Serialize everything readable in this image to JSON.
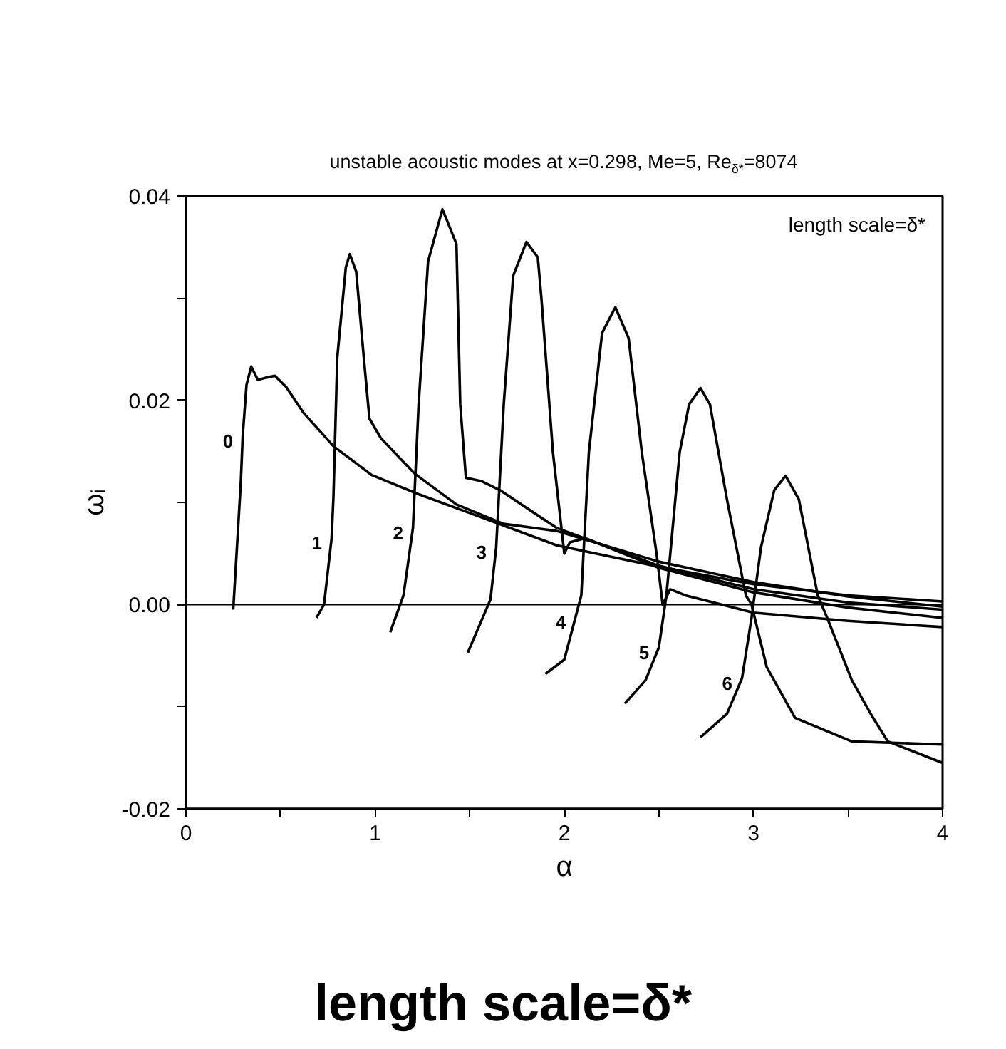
{
  "chart_data": {
    "type": "line",
    "title": "unstable acoustic modes at x=0.298, Me=5, Re$_{δ*}$=8074",
    "xlabel": "α",
    "ylabel": "ωᵢ",
    "xlim": [
      0,
      4
    ],
    "ylim": [
      -0.02,
      0.04
    ],
    "xticks": [
      0,
      {
        "value": 0.5,
        "label": null
      },
      1,
      {
        "value": 1.5,
        "label": null
      },
      2,
      {
        "value": 2.5,
        "label": null
      },
      3,
      {
        "value": 3.5,
        "label": null
      },
      4
    ],
    "yticks": [
      {
        "value": -0.02,
        "label": "-0.02"
      },
      {
        "value": -0.01,
        "label": null
      },
      {
        "value": 0,
        "label": "0.00"
      },
      {
        "value": 0.01,
        "label": null
      },
      {
        "value": 0.02,
        "label": "0.02"
      },
      {
        "value": 0.03,
        "label": null
      },
      {
        "value": 0.04,
        "label": "0.04"
      }
    ],
    "grid": false,
    "marker": "none",
    "line_style": "solid",
    "ref_lines": [
      {
        "axis": "y",
        "value": 0,
        "color": "#000000"
      }
    ],
    "annotations": [
      "length scale=δ*",
      "length scale=δ*"
    ],
    "series": [
      {
        "name": "0",
        "color": "#000000",
        "x": [
          0.25,
          0.29,
          0.3,
          0.32,
          0.345,
          0.38,
          0.42,
          0.47,
          0.53,
          0.62,
          0.78,
          0.98,
          1.23,
          1.48,
          1.96,
          2.5,
          3.0,
          3.5,
          4.0
        ],
        "values": [
          -0.0005,
          0.012,
          0.0165,
          0.0215,
          0.0233,
          0.022,
          0.0222,
          0.0224,
          0.0213,
          0.0188,
          0.0155,
          0.0127,
          0.0108,
          0.0091,
          0.0058,
          0.0037,
          0.002,
          0.0009,
          0.0003
        ]
      },
      {
        "name": "1",
        "color": "#000000",
        "x": [
          0.69,
          0.73,
          0.77,
          0.78,
          0.8,
          0.845,
          0.866,
          0.9,
          0.94,
          0.97,
          1.03,
          1.21,
          1.43,
          1.68,
          1.96,
          2.5,
          3.0,
          3.5,
          4.0
        ],
        "values": [
          -0.0013,
          0.0,
          0.0065,
          0.0107,
          0.0242,
          0.033,
          0.0343,
          0.0326,
          0.0242,
          0.0182,
          0.0163,
          0.0128,
          0.0098,
          0.0079,
          0.0072,
          0.0042,
          0.0022,
          0.0008,
          -0.0002
        ]
      },
      {
        "name": "2",
        "color": "#000000",
        "x": [
          1.08,
          1.15,
          1.2,
          1.23,
          1.28,
          1.356,
          1.43,
          1.45,
          1.48,
          1.56,
          1.66,
          1.96,
          2.5,
          3.0,
          3.5,
          4.0
        ],
        "values": [
          -0.0027,
          0.0009,
          0.0075,
          0.0196,
          0.0336,
          0.0387,
          0.0353,
          0.0196,
          0.0124,
          0.0121,
          0.0112,
          0.0075,
          0.0038,
          0.0015,
          0.0002,
          -0.0005
        ]
      },
      {
        "name": "3",
        "color": "#000000",
        "x": [
          1.49,
          1.61,
          1.64,
          1.68,
          1.73,
          1.8,
          1.86,
          1.88,
          1.94,
          2.0,
          2.03,
          2.11,
          2.5,
          3.0,
          3.5,
          4.0
        ],
        "values": [
          -0.0047,
          0.0005,
          0.0056,
          0.0196,
          0.0322,
          0.0355,
          0.034,
          0.0298,
          0.0149,
          0.005,
          0.0061,
          0.0065,
          0.0036,
          0.0012,
          -0.0003,
          -0.0013
        ]
      },
      {
        "name": "4",
        "color": "#000000",
        "x": [
          1.9,
          2.0,
          2.06,
          2.09,
          2.13,
          2.2,
          2.27,
          2.34,
          2.41,
          2.49,
          2.52,
          2.56,
          2.64,
          3.0,
          3.5,
          4.0
        ],
        "values": [
          -0.0068,
          -0.0054,
          -0.0012,
          0.0009,
          0.0149,
          0.0266,
          0.0291,
          0.0261,
          0.0149,
          0.0047,
          0.0,
          0.0015,
          0.0009,
          -0.0008,
          -0.0016,
          -0.0022
        ]
      },
      {
        "name": "5",
        "color": "#000000",
        "x": [
          2.32,
          2.43,
          2.5,
          2.54,
          2.61,
          2.66,
          2.72,
          2.77,
          2.86,
          2.96,
          2.99,
          3.07,
          3.22,
          3.52,
          4.0
        ],
        "values": [
          -0.0097,
          -0.0074,
          -0.0042,
          0.0009,
          0.0149,
          0.0196,
          0.0212,
          0.0196,
          0.0103,
          0.0009,
          0.0,
          -0.0061,
          -0.0111,
          -0.0134,
          -0.0137
        ]
      },
      {
        "name": "6",
        "color": "#000000",
        "x": [
          2.72,
          2.86,
          2.94,
          2.99,
          3.04,
          3.11,
          3.17,
          3.24,
          3.34,
          3.39,
          3.52,
          3.62,
          3.71,
          4.0
        ],
        "values": [
          -0.013,
          -0.0107,
          -0.0072,
          -0.0013,
          0.0056,
          0.0112,
          0.0126,
          0.0103,
          0.0009,
          -0.0013,
          -0.0074,
          -0.0107,
          -0.0134,
          -0.0155
        ]
      }
    ]
  }
}
